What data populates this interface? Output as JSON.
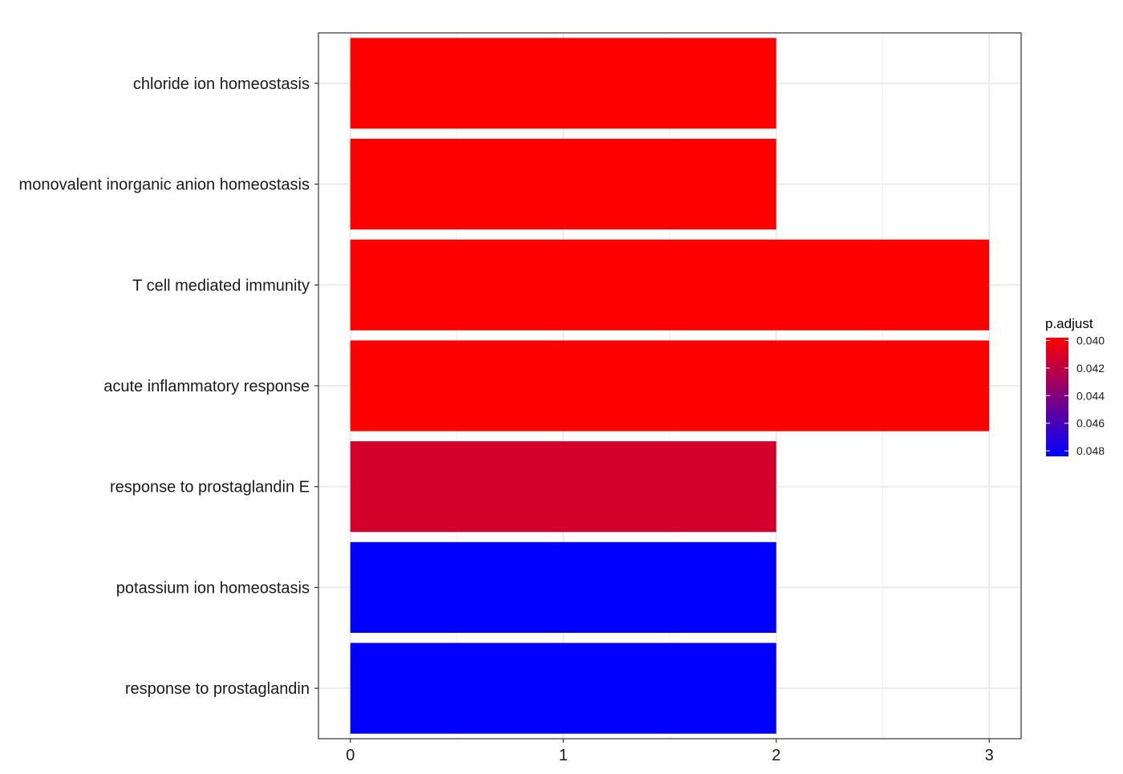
{
  "chart_data": {
    "type": "bar",
    "orientation": "horizontal",
    "categories": [
      "chloride ion homeostasis",
      "monovalent inorganic anion homeostasis",
      "T cell mediated immunity",
      "acute inflammatory response",
      "response to prostaglandin E",
      "potassium ion homeostasis",
      "response to prostaglandin"
    ],
    "values": [
      2,
      2,
      3,
      3,
      2,
      2,
      2
    ],
    "p_adjust": [
      0.0398,
      0.0398,
      0.0398,
      0.0398,
      0.0413,
      0.0484,
      0.0484
    ],
    "xlim": [
      -0.15,
      3.15
    ],
    "x_ticks": [
      0,
      1,
      2,
      3
    ],
    "title": "",
    "xlabel": "",
    "ylabel": "",
    "grid": true,
    "legend": {
      "title": "p.adjust",
      "position": "right",
      "range": [
        0.0398,
        0.0484
      ],
      "ticks": [
        0.04,
        0.042,
        0.044,
        0.046,
        0.048
      ],
      "tick_labels": [
        "0.040",
        "0.042",
        "0.044",
        "0.046",
        "0.048"
      ],
      "color_low": "#ff0000",
      "color_high": "#0000ff"
    }
  }
}
